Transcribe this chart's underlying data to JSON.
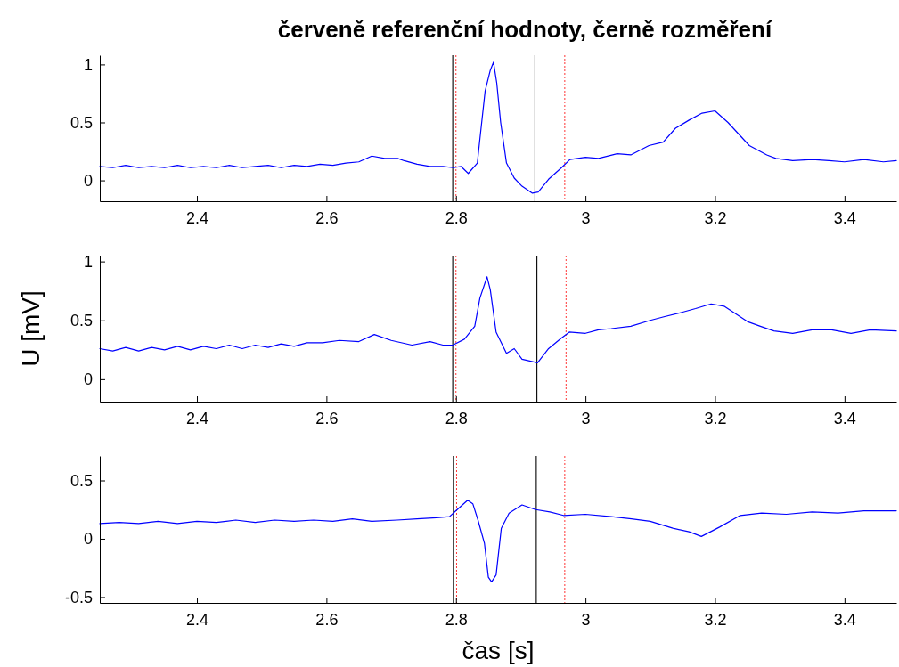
{
  "chart_data": [
    {
      "type": "line",
      "title": "červeně referenční hodnoty, černě rozměření",
      "color": "#0000ff",
      "line_style": "solid",
      "marker": "none",
      "grid": false,
      "xlim": [
        2.25,
        3.48
      ],
      "xticks": [
        2.4,
        2.6,
        2.8,
        3,
        3.2,
        3.4
      ],
      "ylim": [
        -0.18,
        1.08
      ],
      "yticks": [
        0,
        0.5,
        1
      ],
      "x": [
        2.25,
        2.27,
        2.29,
        2.31,
        2.33,
        2.35,
        2.37,
        2.39,
        2.41,
        2.43,
        2.45,
        2.47,
        2.49,
        2.51,
        2.53,
        2.55,
        2.57,
        2.59,
        2.61,
        2.63,
        2.65,
        2.67,
        2.69,
        2.71,
        2.72,
        2.74,
        2.76,
        2.78,
        2.796,
        2.808,
        2.819,
        2.833,
        2.837,
        2.845,
        2.853,
        2.858,
        2.863,
        2.869,
        2.878,
        2.89,
        2.902,
        2.918,
        2.927,
        2.943,
        2.963,
        2.976,
        3.0,
        3.02,
        3.049,
        3.07,
        3.098,
        3.12,
        3.139,
        3.16,
        3.18,
        3.2,
        3.22,
        3.253,
        3.28,
        3.294,
        3.32,
        3.35,
        3.376,
        3.4,
        3.43,
        3.46,
        3.48
      ],
      "values": [
        0.12,
        0.11,
        0.13,
        0.11,
        0.12,
        0.11,
        0.13,
        0.11,
        0.12,
        0.11,
        0.13,
        0.11,
        0.12,
        0.13,
        0.11,
        0.13,
        0.12,
        0.14,
        0.13,
        0.15,
        0.16,
        0.21,
        0.19,
        0.19,
        0.17,
        0.14,
        0.12,
        0.12,
        0.11,
        0.12,
        0.06,
        0.15,
        0.36,
        0.77,
        0.95,
        1.02,
        0.84,
        0.5,
        0.15,
        0.02,
        -0.05,
        -0.11,
        -0.1,
        0.01,
        0.11,
        0.18,
        0.2,
        0.19,
        0.23,
        0.22,
        0.3,
        0.33,
        0.45,
        0.52,
        0.58,
        0.6,
        0.5,
        0.3,
        0.22,
        0.19,
        0.17,
        0.18,
        0.17,
        0.16,
        0.18,
        0.16,
        0.17
      ],
      "ref_lines": [
        {
          "axis": "x",
          "value": 2.795,
          "color": "#000000",
          "line_style": "solid"
        },
        {
          "axis": "x",
          "value": 2.922,
          "color": "#000000",
          "line_style": "solid"
        },
        {
          "axis": "x",
          "value": 2.8,
          "color": "#ff0000",
          "line_style": "dotted"
        },
        {
          "axis": "x",
          "value": 2.968,
          "color": "#ff0000",
          "line_style": "dotted"
        }
      ]
    },
    {
      "type": "line",
      "ylabel": "U [mV]",
      "color": "#0000ff",
      "line_style": "solid",
      "marker": "none",
      "grid": false,
      "xlim": [
        2.25,
        3.48
      ],
      "xticks": [
        2.4,
        2.6,
        2.8,
        3,
        3.2,
        3.4
      ],
      "ylim": [
        -0.19,
        1.05
      ],
      "yticks": [
        0,
        0.5,
        1
      ],
      "x": [
        2.25,
        2.27,
        2.29,
        2.31,
        2.33,
        2.35,
        2.37,
        2.39,
        2.41,
        2.43,
        2.45,
        2.47,
        2.49,
        2.51,
        2.53,
        2.55,
        2.57,
        2.594,
        2.62,
        2.65,
        2.674,
        2.7,
        2.732,
        2.76,
        2.78,
        2.795,
        2.813,
        2.829,
        2.837,
        2.848,
        2.853,
        2.862,
        2.878,
        2.89,
        2.902,
        2.926,
        2.943,
        2.963,
        2.975,
        3.0,
        3.02,
        3.04,
        3.07,
        3.1,
        3.121,
        3.15,
        3.17,
        3.194,
        3.214,
        3.25,
        3.27,
        3.291,
        3.32,
        3.35,
        3.38,
        3.41,
        3.44,
        3.48
      ],
      "values": [
        0.26,
        0.24,
        0.27,
        0.24,
        0.27,
        0.25,
        0.28,
        0.25,
        0.28,
        0.26,
        0.29,
        0.26,
        0.29,
        0.27,
        0.3,
        0.28,
        0.31,
        0.31,
        0.33,
        0.32,
        0.38,
        0.33,
        0.29,
        0.32,
        0.29,
        0.29,
        0.34,
        0.45,
        0.69,
        0.87,
        0.76,
        0.4,
        0.22,
        0.26,
        0.17,
        0.14,
        0.26,
        0.35,
        0.4,
        0.39,
        0.42,
        0.43,
        0.45,
        0.5,
        0.53,
        0.57,
        0.6,
        0.64,
        0.62,
        0.49,
        0.45,
        0.41,
        0.39,
        0.42,
        0.42,
        0.39,
        0.42,
        0.41
      ],
      "ref_lines": [
        {
          "axis": "x",
          "value": 2.795,
          "color": "#000000",
          "line_style": "solid"
        },
        {
          "axis": "x",
          "value": 2.925,
          "color": "#000000",
          "line_style": "solid"
        },
        {
          "axis": "x",
          "value": 2.8,
          "color": "#ff0000",
          "line_style": "dotted"
        },
        {
          "axis": "x",
          "value": 2.97,
          "color": "#ff0000",
          "line_style": "dotted"
        }
      ]
    },
    {
      "type": "line",
      "xlabel": "čas [s]",
      "color": "#0000ff",
      "line_style": "solid",
      "marker": "none",
      "grid": false,
      "xlim": [
        2.25,
        3.48
      ],
      "xticks": [
        2.4,
        2.6,
        2.8,
        3,
        3.2,
        3.4
      ],
      "ylim": [
        -0.55,
        0.71
      ],
      "yticks": [
        -0.5,
        0,
        0.5
      ],
      "x": [
        2.25,
        2.28,
        2.31,
        2.34,
        2.37,
        2.4,
        2.43,
        2.46,
        2.49,
        2.52,
        2.55,
        2.58,
        2.61,
        2.64,
        2.67,
        2.709,
        2.74,
        2.77,
        2.79,
        2.818,
        2.826,
        2.834,
        2.844,
        2.85,
        2.855,
        2.862,
        2.87,
        2.882,
        2.902,
        2.923,
        2.945,
        2.966,
        3.0,
        3.04,
        3.071,
        3.1,
        3.135,
        3.16,
        3.179,
        3.207,
        3.239,
        3.272,
        3.31,
        3.35,
        3.39,
        3.43,
        3.48
      ],
      "values": [
        0.13,
        0.14,
        0.13,
        0.15,
        0.13,
        0.15,
        0.14,
        0.16,
        0.14,
        0.16,
        0.15,
        0.16,
        0.15,
        0.17,
        0.15,
        0.16,
        0.17,
        0.18,
        0.19,
        0.33,
        0.3,
        0.16,
        -0.04,
        -0.33,
        -0.37,
        -0.31,
        0.09,
        0.22,
        0.29,
        0.25,
        0.23,
        0.2,
        0.21,
        0.19,
        0.17,
        0.15,
        0.09,
        0.06,
        0.02,
        0.1,
        0.2,
        0.22,
        0.21,
        0.23,
        0.22,
        0.24,
        0.24
      ],
      "ref_lines": [
        {
          "axis": "x",
          "value": 2.796,
          "color": "#000000",
          "line_style": "solid"
        },
        {
          "axis": "x",
          "value": 2.924,
          "color": "#000000",
          "line_style": "solid"
        },
        {
          "axis": "x",
          "value": 2.801,
          "color": "#ff0000",
          "line_style": "dotted"
        },
        {
          "axis": "x",
          "value": 2.968,
          "color": "#ff0000",
          "line_style": "dotted"
        }
      ]
    }
  ]
}
